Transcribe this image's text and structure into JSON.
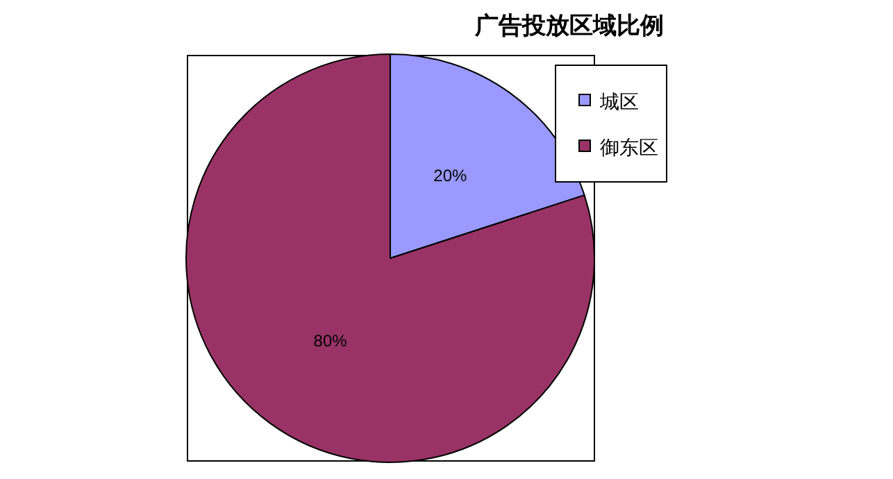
{
  "chart_data": {
    "type": "pie",
    "title": "广告投放区域比例",
    "categories": [
      "城区",
      "御东区"
    ],
    "values": [
      20,
      80
    ],
    "colors": [
      "#9999ff",
      "#993366"
    ],
    "value_labels": [
      "20%",
      "80%"
    ],
    "legend": "top right"
  }
}
